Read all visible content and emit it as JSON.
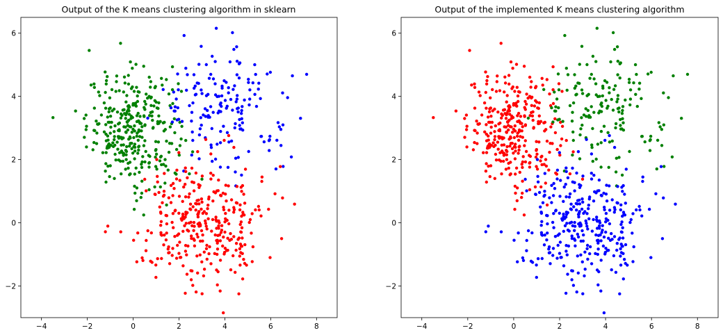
{
  "chart_data": [
    {
      "type": "scatter",
      "title": "Output of the K means clustering algorithm in sklearn",
      "xlabel": "",
      "ylabel": "",
      "xlim": [
        -4.9,
        8.9
      ],
      "ylim": [
        -3.0,
        6.5
      ],
      "x_ticks": [
        -4,
        -2,
        0,
        2,
        4,
        6,
        8
      ],
      "y_ticks": [
        -2,
        0,
        2,
        4,
        6
      ],
      "grid": false,
      "clusters": [
        {
          "color": "#008000",
          "center": [
            0.0,
            3.0
          ],
          "spread": [
            1.0,
            0.9
          ],
          "count": 330
        },
        {
          "color": "#0000ff",
          "center": [
            4.0,
            3.7
          ],
          "spread": [
            1.35,
            0.95
          ],
          "count": 170
        },
        {
          "color": "#ff0000",
          "center": [
            3.0,
            0.0
          ],
          "spread": [
            1.35,
            1.0
          ],
          "count": 330
        }
      ]
    },
    {
      "type": "scatter",
      "title": "Output of the implemented K means clustering algorithm",
      "xlabel": "",
      "ylabel": "",
      "xlim": [
        -4.9,
        8.9
      ],
      "ylim": [
        -3.0,
        6.5
      ],
      "x_ticks": [
        -4,
        -2,
        0,
        2,
        4,
        6,
        8
      ],
      "y_ticks": [
        -2,
        0,
        2,
        4,
        6
      ],
      "grid": false,
      "clusters": [
        {
          "color": "#ff0000",
          "center": [
            0.0,
            3.0
          ],
          "spread": [
            1.0,
            0.9
          ],
          "count": 330
        },
        {
          "color": "#008000",
          "center": [
            4.0,
            3.7
          ],
          "spread": [
            1.35,
            0.95
          ],
          "count": 170
        },
        {
          "color": "#0000ff",
          "center": [
            3.0,
            0.0
          ],
          "spread": [
            1.35,
            1.0
          ],
          "count": 330
        }
      ]
    }
  ]
}
